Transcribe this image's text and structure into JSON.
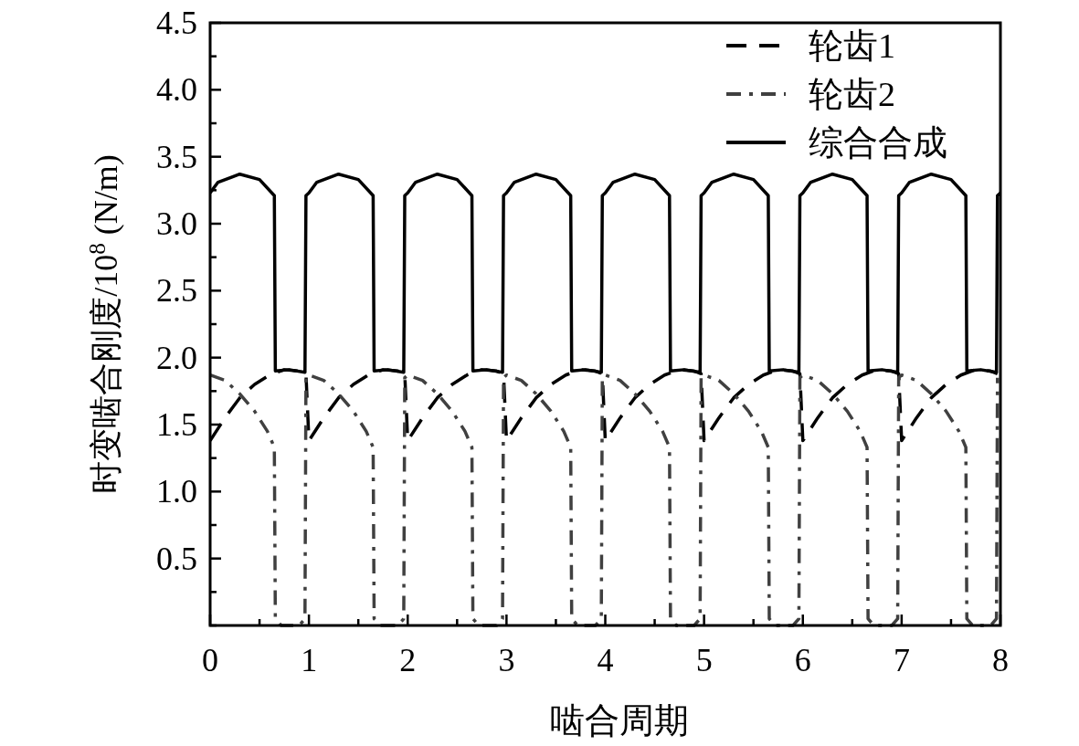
{
  "chart_data": {
    "type": "line",
    "xlabel": "啮合周期",
    "ylabel": "时变啮合刚度/10$^{8}$ (N/m)",
    "xlim": [
      0,
      8
    ],
    "xticks": [
      0,
      {
        "value": 0.5,
        "label": null
      },
      1,
      {
        "value": 1.5,
        "label": null
      },
      2,
      {
        "value": 2.5,
        "label": null
      },
      3,
      {
        "value": 3.5,
        "label": null
      },
      4,
      {
        "value": 4.5,
        "label": null
      },
      5,
      {
        "value": 5.5,
        "label": null
      },
      6,
      {
        "value": 6.5,
        "label": null
      },
      7,
      {
        "value": 7.5,
        "label": null
      },
      8
    ],
    "ylim": [
      0,
      4.5
    ],
    "yticks": [
      {
        "value": 0,
        "label": null
      },
      {
        "value": 0.25,
        "label": null
      },
      0.5,
      {
        "value": 0.75,
        "label": null
      },
      {
        "value": 1,
        "label": "1.0"
      },
      {
        "value": 1.25,
        "label": null
      },
      1.5,
      {
        "value": 1.75,
        "label": null
      },
      {
        "value": 2,
        "label": "2.0"
      },
      {
        "value": 2.25,
        "label": null
      },
      2.5,
      {
        "value": 2.75,
        "label": null
      },
      {
        "value": 3,
        "label": "3.0"
      },
      {
        "value": 3.25,
        "label": null
      },
      3.5,
      {
        "value": 3.75,
        "label": null
      },
      {
        "value": 4,
        "label": "4.0"
      },
      {
        "value": 4.25,
        "label": null
      },
      4.5
    ],
    "grid": false,
    "legend": "top right",
    "marker": "none",
    "series": [
      {
        "name": "轮齿1",
        "color": "#000000",
        "line_style": "dashed",
        "x": [
          0,
          0.15,
          0.3,
          0.45,
          0.6,
          0.75,
          0.9,
          0.97,
          1,
          1.15,
          1.3,
          1.45,
          1.6,
          1.75,
          1.9,
          1.97,
          2,
          2.15,
          2.3,
          2.45,
          2.6,
          2.75,
          2.9,
          2.97,
          3,
          3.15,
          3.3,
          3.45,
          3.6,
          3.75,
          3.9,
          3.97,
          4,
          4.15,
          4.3,
          4.45,
          4.6,
          4.75,
          4.9,
          4.97,
          5,
          5.15,
          5.3,
          5.45,
          5.6,
          5.75,
          5.9,
          5.97,
          6,
          6.15,
          6.3,
          6.45,
          6.6,
          6.75,
          6.9,
          6.97,
          7,
          7.15,
          7.3,
          7.45,
          7.6,
          7.75,
          7.9,
          7.97
        ],
        "values": [
          1.38,
          1.55,
          1.7,
          1.8,
          1.87,
          1.91,
          1.9,
          1.88,
          1.38,
          1.55,
          1.7,
          1.8,
          1.87,
          1.91,
          1.9,
          1.88,
          1.38,
          1.55,
          1.7,
          1.8,
          1.87,
          1.91,
          1.9,
          1.88,
          1.38,
          1.55,
          1.7,
          1.8,
          1.87,
          1.91,
          1.9,
          1.88,
          1.38,
          1.55,
          1.7,
          1.8,
          1.87,
          1.91,
          1.9,
          1.88,
          1.38,
          1.55,
          1.7,
          1.8,
          1.87,
          1.91,
          1.9,
          1.88,
          1.38,
          1.55,
          1.7,
          1.8,
          1.87,
          1.91,
          1.9,
          1.88,
          1.38,
          1.55,
          1.7,
          1.8,
          1.87,
          1.91,
          1.9,
          1.88
        ]
      },
      {
        "name": "轮齿2",
        "color": "#404040",
        "line_style": "dashdot",
        "x": [
          0,
          0.15,
          0.3,
          0.45,
          0.58,
          0.65,
          0.66,
          0.72,
          0.9,
          0.96,
          0.97,
          1,
          1.15,
          1.3,
          1.45,
          1.58,
          1.65,
          1.66,
          1.72,
          1.9,
          1.96,
          1.97,
          2,
          2.15,
          2.3,
          2.45,
          2.58,
          2.65,
          2.66,
          2.72,
          2.9,
          2.96,
          2.97,
          3,
          3.15,
          3.3,
          3.45,
          3.58,
          3.65,
          3.66,
          3.72,
          3.9,
          3.96,
          3.97,
          4,
          4.15,
          4.3,
          4.45,
          4.58,
          4.65,
          4.66,
          4.72,
          4.9,
          4.96,
          4.97,
          5,
          5.15,
          5.3,
          5.45,
          5.58,
          5.65,
          5.66,
          5.72,
          5.9,
          5.96,
          5.97,
          6,
          6.15,
          6.3,
          6.45,
          6.58,
          6.65,
          6.66,
          6.72,
          6.9,
          6.96,
          6.97,
          7,
          7.15,
          7.3,
          7.45,
          7.58,
          7.65,
          7.66,
          7.72,
          7.9,
          7.96,
          7.97
        ],
        "values": [
          1.87,
          1.83,
          1.73,
          1.6,
          1.45,
          1.33,
          0.05,
          0,
          0,
          0.05,
          1.85,
          1.87,
          1.83,
          1.73,
          1.6,
          1.45,
          1.33,
          0.05,
          0,
          0,
          0.05,
          1.85,
          1.87,
          1.83,
          1.73,
          1.6,
          1.45,
          1.33,
          0.05,
          0,
          0,
          0.05,
          1.85,
          1.87,
          1.83,
          1.73,
          1.6,
          1.45,
          1.33,
          0.05,
          0,
          0,
          0.05,
          1.85,
          1.87,
          1.83,
          1.73,
          1.6,
          1.45,
          1.33,
          0.05,
          0,
          0,
          0.05,
          1.85,
          1.87,
          1.83,
          1.73,
          1.6,
          1.45,
          1.33,
          0.05,
          0,
          0,
          0.05,
          1.85,
          1.87,
          1.83,
          1.73,
          1.6,
          1.45,
          1.33,
          0.05,
          0,
          0,
          0.05,
          1.85,
          1.87,
          1.83,
          1.73,
          1.6,
          1.45,
          1.33,
          0.05,
          0,
          0,
          0.05,
          1.85
        ]
      },
      {
        "name": "综合合成",
        "color": "#000000",
        "line_style": "solid",
        "x": [
          0,
          0.08,
          0.3,
          0.5,
          0.65,
          0.66,
          0.8,
          0.96,
          0.97,
          1,
          1.08,
          1.3,
          1.5,
          1.65,
          1.66,
          1.8,
          1.96,
          1.97,
          2,
          2.08,
          2.3,
          2.5,
          2.65,
          2.66,
          2.8,
          2.96,
          2.97,
          3,
          3.08,
          3.3,
          3.5,
          3.65,
          3.66,
          3.8,
          3.96,
          3.97,
          4,
          4.08,
          4.3,
          4.5,
          4.65,
          4.66,
          4.8,
          4.96,
          4.97,
          5,
          5.08,
          5.3,
          5.5,
          5.65,
          5.66,
          5.8,
          5.96,
          5.97,
          6,
          6.08,
          6.3,
          6.5,
          6.65,
          6.66,
          6.8,
          6.96,
          6.97,
          7,
          7.08,
          7.3,
          7.5,
          7.65,
          7.66,
          7.8,
          7.96,
          7.97,
          8
        ],
        "values": [
          3.23,
          3.31,
          3.37,
          3.33,
          3.21,
          1.9,
          1.91,
          1.89,
          3.21,
          3.23,
          3.31,
          3.37,
          3.33,
          3.21,
          1.9,
          1.91,
          1.89,
          3.21,
          3.23,
          3.31,
          3.37,
          3.33,
          3.21,
          1.9,
          1.91,
          1.89,
          3.21,
          3.23,
          3.31,
          3.37,
          3.33,
          3.21,
          1.9,
          1.91,
          1.89,
          3.21,
          3.23,
          3.31,
          3.37,
          3.33,
          3.21,
          1.9,
          1.91,
          1.89,
          3.21,
          3.23,
          3.31,
          3.37,
          3.33,
          3.21,
          1.9,
          1.91,
          1.89,
          3.21,
          3.23,
          3.31,
          3.37,
          3.33,
          3.21,
          1.9,
          1.91,
          1.89,
          3.21,
          3.23,
          3.31,
          3.37,
          3.33,
          3.21,
          1.9,
          1.91,
          1.89,
          3.21,
          3.23
        ]
      }
    ]
  }
}
